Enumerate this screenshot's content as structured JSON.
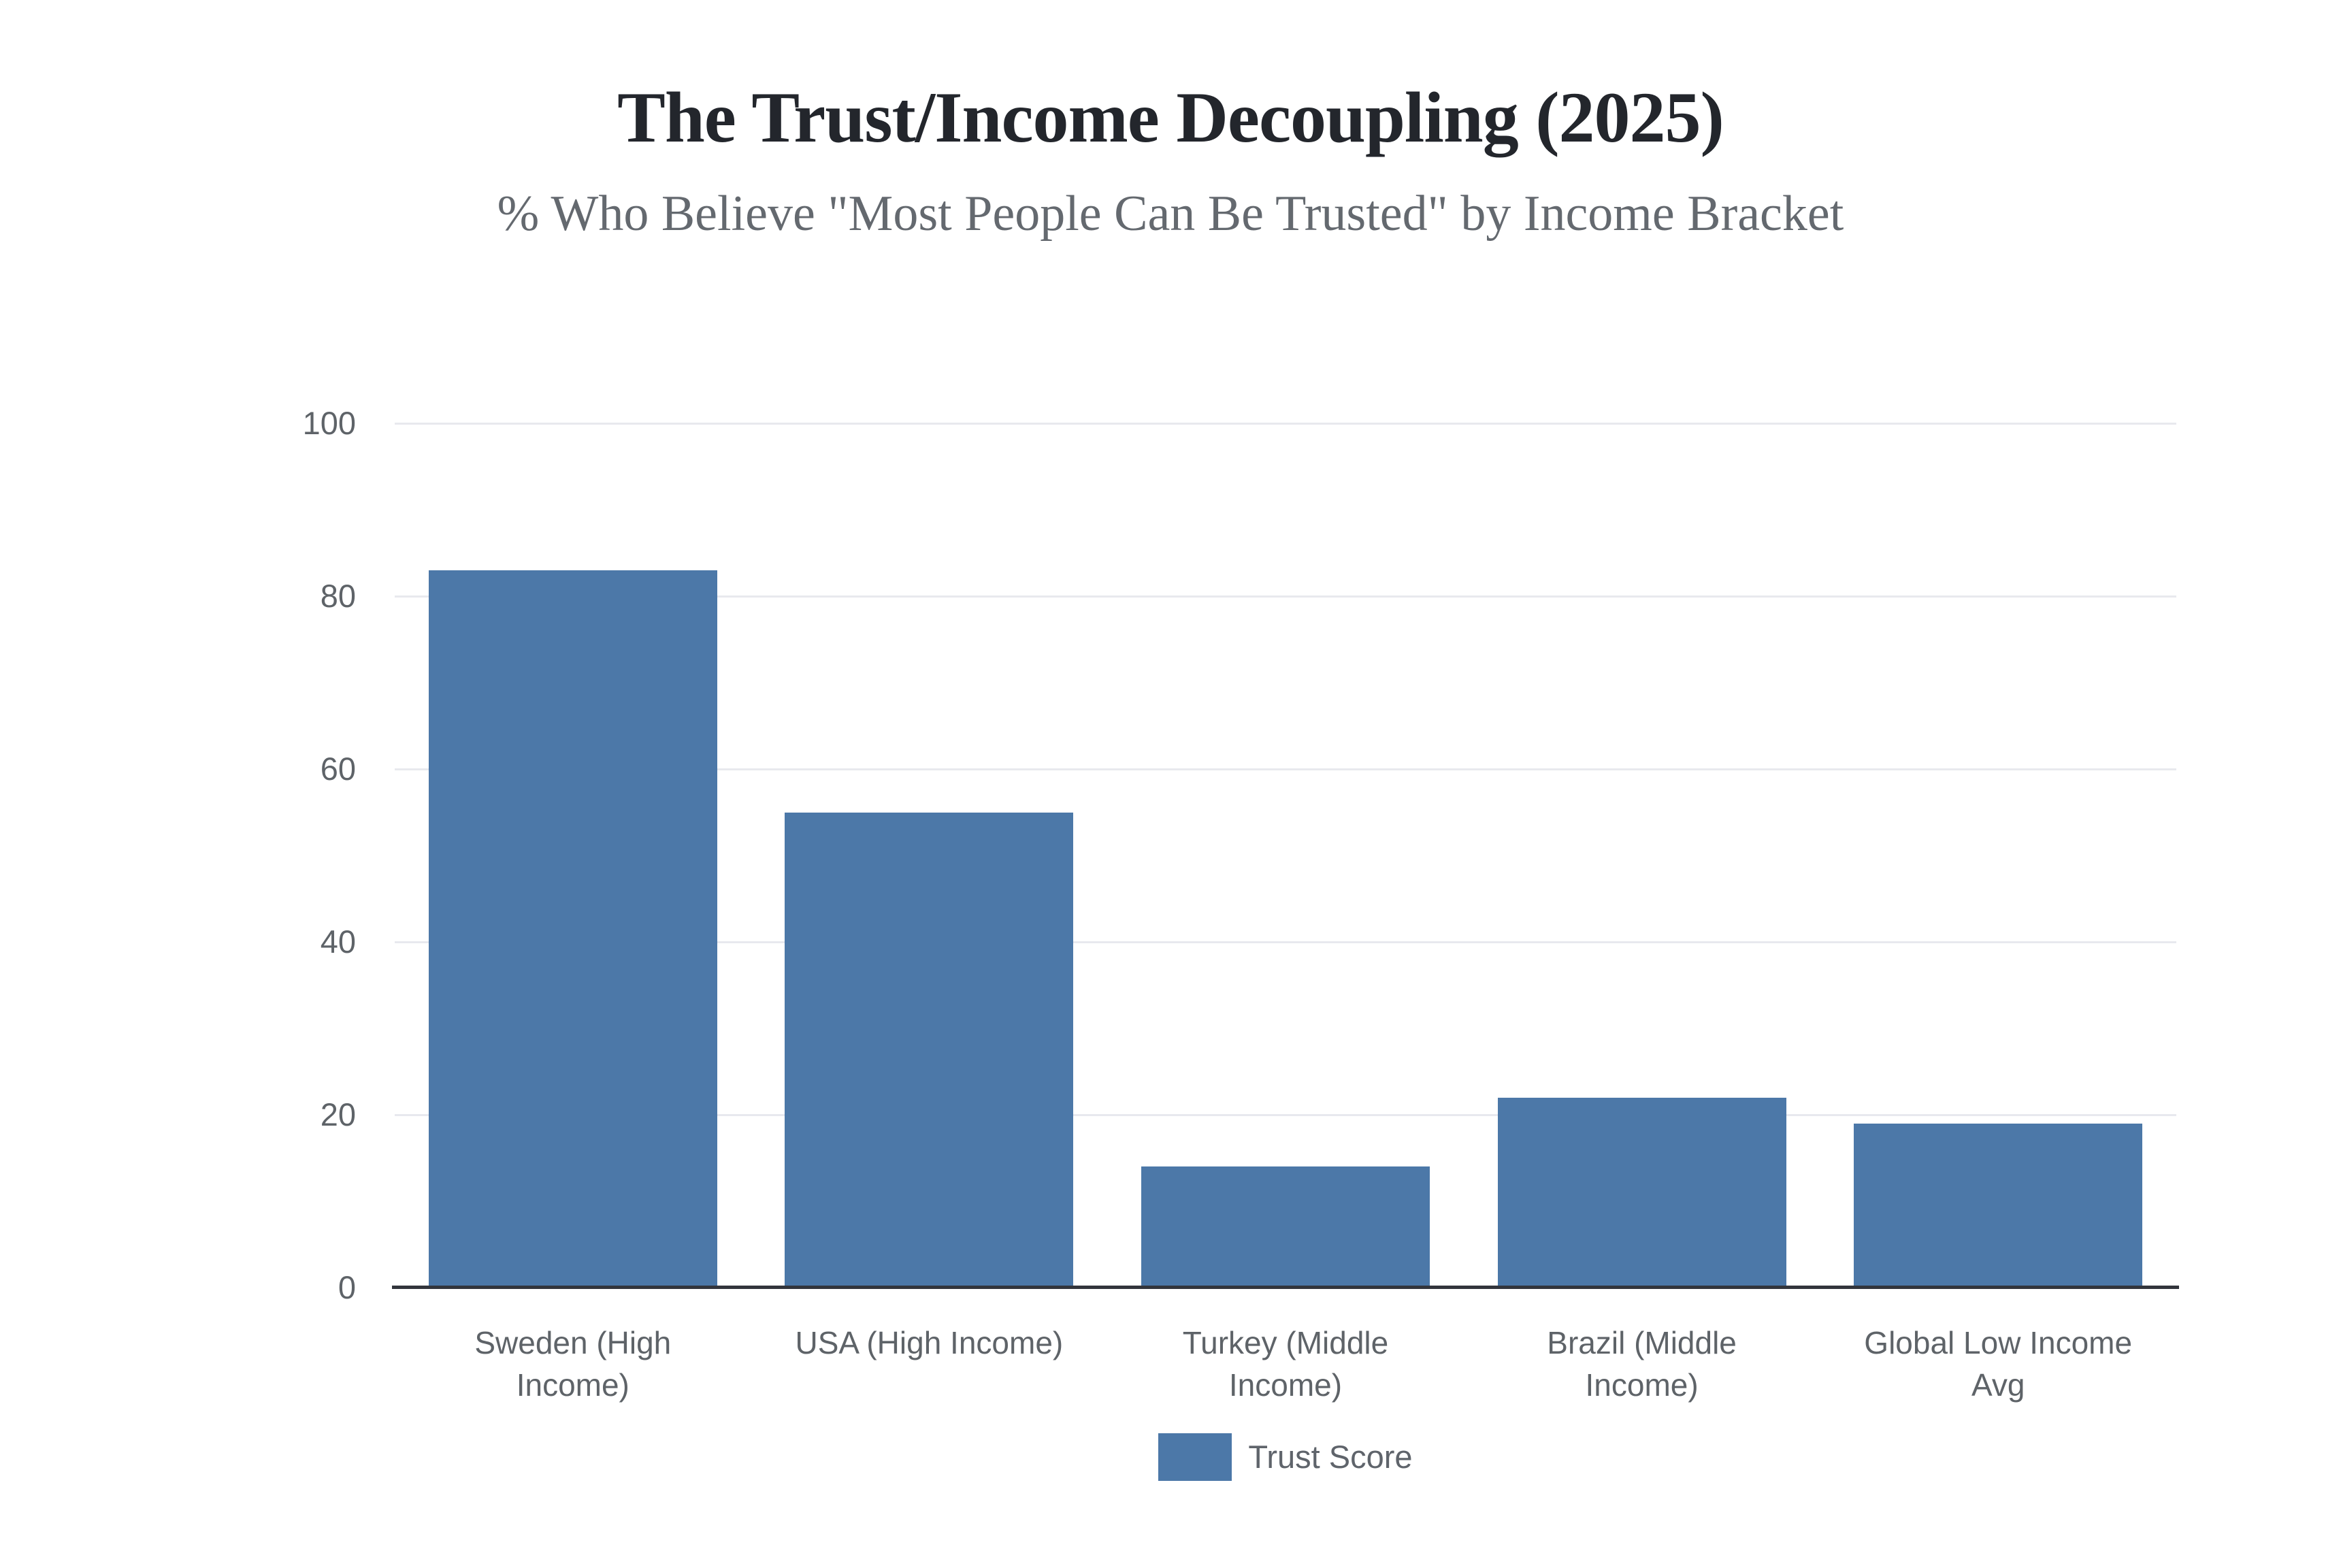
{
  "header": {
    "title": "The Trust/Income Decoupling (2025)",
    "subtitle": "% Who Believe \"Most People Can Be Trusted\" by Income Bracket"
  },
  "chart_data": {
    "type": "bar",
    "title": "The Trust/Income Decoupling (2025)",
    "subtitle": "% Who Believe \"Most People Can Be Trusted\" by Income Bracket",
    "categories": [
      "Sweden (High Income)",
      "USA (High Income)",
      "Turkey (Middle Income)",
      "Brazil (Middle Income)",
      "Global Low Income Avg"
    ],
    "series": [
      {
        "name": "Trust Score",
        "values": [
          83,
          55,
          14,
          22,
          19
        ],
        "color": "#4c78a8"
      }
    ],
    "xlabel": "",
    "ylabel": "",
    "ylim": [
      0,
      100
    ],
    "yticks": [
      0,
      20,
      40,
      60,
      80,
      100
    ],
    "grid": true,
    "legend_position": "bottom"
  },
  "legend": {
    "items": [
      {
        "label": "Trust Score",
        "color": "#4c78a8"
      }
    ]
  },
  "colors": {
    "bar": "#4c78a8",
    "gridline": "#e8e9ee",
    "axis_line": "#32353c",
    "tick_label": "#5e6368",
    "title": "#23262c",
    "subtitle": "#64696f",
    "background": "#ffffff"
  }
}
